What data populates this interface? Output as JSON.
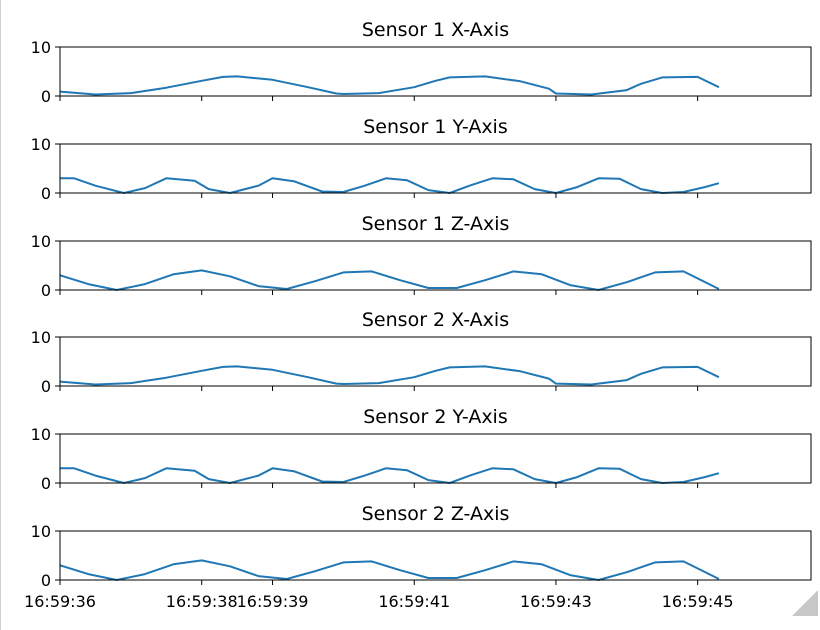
{
  "chart_data": [
    {
      "type": "line",
      "title": "Sensor 1 X-Axis",
      "ylim": [
        0,
        10
      ],
      "yticks": [
        0,
        10
      ],
      "xlim": [
        "16:59:36.0",
        "16:59:46.6"
      ],
      "series": [
        {
          "values_note_free": true,
          "x": [
            "16:59:36.0",
            "16:59:36.5",
            "16:59:37.0",
            "16:59:37.5",
            "16:59:38.0",
            "16:59:38.3",
            "16:59:38.5",
            "16:59:39.0",
            "16:59:39.5",
            "16:59:39.9",
            "16:59:40.0",
            "16:59:40.5",
            "16:59:41.0",
            "16:59:41.3",
            "16:59:41.5",
            "16:59:42.0",
            "16:59:42.5",
            "16:59:42.9",
            "16:59:43.0",
            "16:59:43.5",
            "16:59:44.0",
            "16:59:44.2",
            "16:59:44.5",
            "16:59:45.0",
            "16:59:45.3"
          ],
          "y": [
            0.9,
            0.3,
            0.6,
            1.7,
            3.1,
            3.9,
            4.0,
            3.3,
            1.8,
            0.5,
            0.4,
            0.6,
            1.8,
            3.1,
            3.8,
            4.0,
            3.0,
            1.5,
            0.5,
            0.3,
            1.2,
            2.5,
            3.8,
            3.9,
            1.8
          ]
        }
      ]
    },
    {
      "type": "line",
      "title": "Sensor 1 Y-Axis",
      "ylim": [
        0,
        10
      ],
      "yticks": [
        0,
        10
      ],
      "xlim": [
        "16:59:36.0",
        "16:59:46.6"
      ],
      "series": [
        {
          "x": [
            "16:59:36.0",
            "16:59:36.2",
            "16:59:36.5",
            "16:59:36.9",
            "16:59:37.2",
            "16:59:37.5",
            "16:59:37.9",
            "16:59:38.1",
            "16:59:38.4",
            "16:59:38.8",
            "16:59:39.0",
            "16:59:39.3",
            "16:59:39.7",
            "16:59:40.0",
            "16:59:40.3",
            "16:59:40.6",
            "16:59:40.9",
            "16:59:41.2",
            "16:59:41.5",
            "16:59:41.8",
            "16:59:42.1",
            "16:59:42.4",
            "16:59:42.7",
            "16:59:43.0",
            "16:59:43.3",
            "16:59:43.6",
            "16:59:43.9",
            "16:59:44.2",
            "16:59:44.5",
            "16:59:44.8",
            "16:59:45.1",
            "16:59:45.3"
          ],
          "y": [
            3.0,
            3.0,
            1.5,
            0.0,
            1.0,
            3.0,
            2.5,
            0.8,
            0.0,
            1.5,
            3.0,
            2.4,
            0.3,
            0.2,
            1.5,
            3.0,
            2.6,
            0.6,
            0.0,
            1.6,
            3.0,
            2.8,
            0.8,
            0.0,
            1.2,
            3.0,
            2.9,
            0.8,
            0.0,
            0.2,
            1.2,
            2.0
          ]
        }
      ]
    },
    {
      "type": "line",
      "title": "Sensor 1 Z-Axis",
      "ylim": [
        0,
        10
      ],
      "yticks": [
        0,
        10
      ],
      "xlim": [
        "16:59:36.0",
        "16:59:46.6"
      ],
      "series": [
        {
          "x": [
            "16:59:36.0",
            "16:59:36.4",
            "16:59:36.8",
            "16:59:37.2",
            "16:59:37.6",
            "16:59:38.0",
            "16:59:38.4",
            "16:59:38.8",
            "16:59:39.2",
            "16:59:39.6",
            "16:59:40.0",
            "16:59:40.4",
            "16:59:40.8",
            "16:59:41.2",
            "16:59:41.6",
            "16:59:42.0",
            "16:59:42.4",
            "16:59:42.8",
            "16:59:43.2",
            "16:59:43.6",
            "16:59:44.0",
            "16:59:44.4",
            "16:59:44.8",
            "16:59:45.3"
          ],
          "y": [
            3.0,
            1.2,
            0.0,
            1.2,
            3.2,
            4.0,
            2.8,
            0.8,
            0.2,
            1.8,
            3.6,
            3.8,
            2.0,
            0.4,
            0.4,
            2.0,
            3.8,
            3.2,
            1.0,
            0.0,
            1.6,
            3.6,
            3.8,
            0.2
          ]
        }
      ]
    },
    {
      "type": "line",
      "title": "Sensor 2 X-Axis",
      "ylim": [
        0,
        10
      ],
      "yticks": [
        0,
        10
      ],
      "xlim": [
        "16:59:36.0",
        "16:59:46.6"
      ],
      "series": [
        {
          "x": [
            "16:59:36.0",
            "16:59:36.5",
            "16:59:37.0",
            "16:59:37.5",
            "16:59:38.0",
            "16:59:38.3",
            "16:59:38.5",
            "16:59:39.0",
            "16:59:39.5",
            "16:59:39.9",
            "16:59:40.0",
            "16:59:40.5",
            "16:59:41.0",
            "16:59:41.3",
            "16:59:41.5",
            "16:59:42.0",
            "16:59:42.5",
            "16:59:42.9",
            "16:59:43.0",
            "16:59:43.5",
            "16:59:44.0",
            "16:59:44.2",
            "16:59:44.5",
            "16:59:45.0",
            "16:59:45.3"
          ],
          "y": [
            0.9,
            0.3,
            0.6,
            1.7,
            3.1,
            3.9,
            4.0,
            3.3,
            1.8,
            0.5,
            0.4,
            0.6,
            1.8,
            3.1,
            3.8,
            4.0,
            3.0,
            1.5,
            0.5,
            0.3,
            1.2,
            2.5,
            3.8,
            3.9,
            1.8
          ]
        }
      ]
    },
    {
      "type": "line",
      "title": "Sensor 2 Y-Axis",
      "ylim": [
        0,
        10
      ],
      "yticks": [
        0,
        10
      ],
      "xlim": [
        "16:59:36.0",
        "16:59:46.6"
      ],
      "series": [
        {
          "x": [
            "16:59:36.0",
            "16:59:36.2",
            "16:59:36.5",
            "16:59:36.9",
            "16:59:37.2",
            "16:59:37.5",
            "16:59:37.9",
            "16:59:38.1",
            "16:59:38.4",
            "16:59:38.8",
            "16:59:39.0",
            "16:59:39.3",
            "16:59:39.7",
            "16:59:40.0",
            "16:59:40.3",
            "16:59:40.6",
            "16:59:40.9",
            "16:59:41.2",
            "16:59:41.5",
            "16:59:41.8",
            "16:59:42.1",
            "16:59:42.4",
            "16:59:42.7",
            "16:59:43.0",
            "16:59:43.3",
            "16:59:43.6",
            "16:59:43.9",
            "16:59:44.2",
            "16:59:44.5",
            "16:59:44.8",
            "16:59:45.1",
            "16:59:45.3"
          ],
          "y": [
            3.0,
            3.0,
            1.5,
            0.0,
            1.0,
            3.0,
            2.5,
            0.8,
            0.0,
            1.5,
            3.0,
            2.4,
            0.3,
            0.2,
            1.5,
            3.0,
            2.6,
            0.6,
            0.0,
            1.6,
            3.0,
            2.8,
            0.8,
            0.0,
            1.2,
            3.0,
            2.9,
            0.8,
            0.0,
            0.2,
            1.2,
            2.0
          ]
        }
      ]
    },
    {
      "type": "line",
      "title": "Sensor 2 Z-Axis",
      "ylim": [
        0,
        10
      ],
      "yticks": [
        0,
        10
      ],
      "xlim": [
        "16:59:36.0",
        "16:59:46.6"
      ],
      "xticks": [
        "16:59:36",
        "16:59:38",
        "16:59:39",
        "16:59:41",
        "16:59:43",
        "16:59:45"
      ],
      "series": [
        {
          "x": [
            "16:59:36.0",
            "16:59:36.4",
            "16:59:36.8",
            "16:59:37.2",
            "16:59:37.6",
            "16:59:38.0",
            "16:59:38.4",
            "16:59:38.8",
            "16:59:39.2",
            "16:59:39.6",
            "16:59:40.0",
            "16:59:40.4",
            "16:59:40.8",
            "16:59:41.2",
            "16:59:41.6",
            "16:59:42.0",
            "16:59:42.4",
            "16:59:42.8",
            "16:59:43.2",
            "16:59:43.6",
            "16:59:44.0",
            "16:59:44.4",
            "16:59:44.8",
            "16:59:45.3"
          ],
          "y": [
            3.0,
            1.2,
            0.0,
            1.2,
            3.2,
            4.0,
            2.8,
            0.8,
            0.2,
            1.8,
            3.6,
            3.8,
            2.0,
            0.4,
            0.4,
            2.0,
            3.8,
            3.2,
            1.0,
            0.0,
            1.6,
            3.6,
            3.8,
            0.2
          ]
        }
      ]
    }
  ],
  "colors": {
    "line": "#1f77b4",
    "axes": "#000000",
    "grip": "#c8c8c8"
  },
  "icons": {
    "resize_grip": "resize-grip-icon"
  }
}
